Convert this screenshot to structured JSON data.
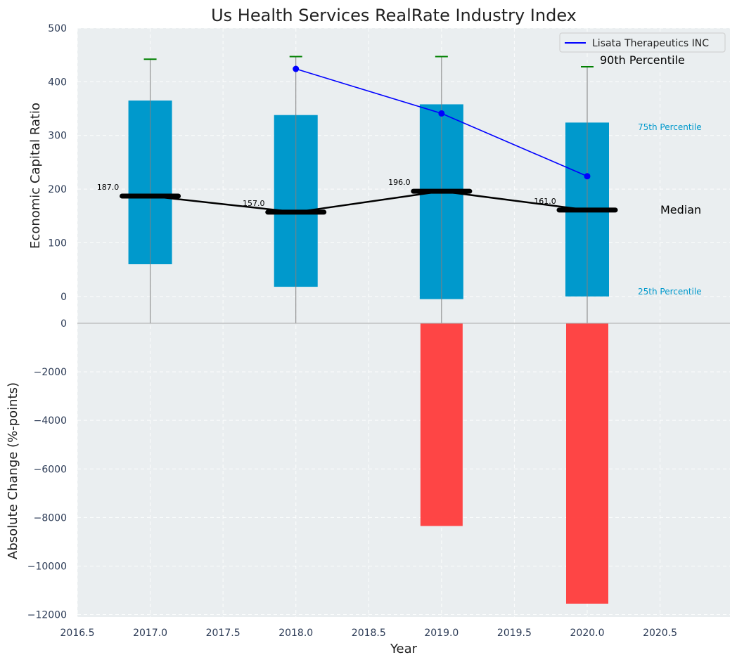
{
  "chart_data": {
    "title": "Us Health Services RealRate Industry Index",
    "xlabel": "Year",
    "x_ticks": [
      2016.5,
      2017.0,
      2017.5,
      2018.0,
      2018.5,
      2019.0,
      2019.5,
      2020.0,
      2020.5
    ],
    "xlim": [
      2016.5,
      2020.98
    ],
    "colors": {
      "box": "#0099cc",
      "whisker": "#808080",
      "cap": "#008000",
      "company": "#0000ff",
      "change": "#ff3b3b",
      "panel": "#eaeef0"
    },
    "top": {
      "type": "box-range",
      "ylabel": "Economic Capital Ratio",
      "ylim": [
        -50,
        500
      ],
      "y_ticks": [
        0,
        100,
        200,
        300,
        400,
        500
      ],
      "years": [
        2017,
        2018,
        2019,
        2020
      ],
      "p25": [
        60,
        18,
        -5,
        0
      ],
      "p75": [
        365,
        338,
        358,
        324
      ],
      "p90": [
        442,
        447,
        447,
        428
      ],
      "median": [
        187.0,
        157.0,
        196.0,
        161.0
      ],
      "median_labels": [
        "187.0",
        "157.0",
        "196.0",
        "161.0"
      ],
      "company": {
        "name": "Lisata Therapeutics INC",
        "years": [
          2018,
          2019,
          2020
        ],
        "values": [
          424,
          341,
          224
        ]
      },
      "annotations": {
        "p90": "90th Percentile",
        "p75": "75th Percentile",
        "median": "Median",
        "p25": "25th Percentile"
      }
    },
    "bottom": {
      "type": "bar",
      "ylabel": "Absolute Change (%-points)",
      "ylim": [
        -12100,
        0
      ],
      "y_ticks": [
        0,
        -2000,
        -4000,
        -6000,
        -8000,
        -10000,
        -12000
      ],
      "y_tick_labels": [
        "0",
        "−2000",
        "−4000",
        "−6000",
        "−8000",
        "−10000",
        "−12000"
      ],
      "years": [
        2019,
        2020
      ],
      "values": [
        -8350,
        -11550
      ]
    }
  }
}
